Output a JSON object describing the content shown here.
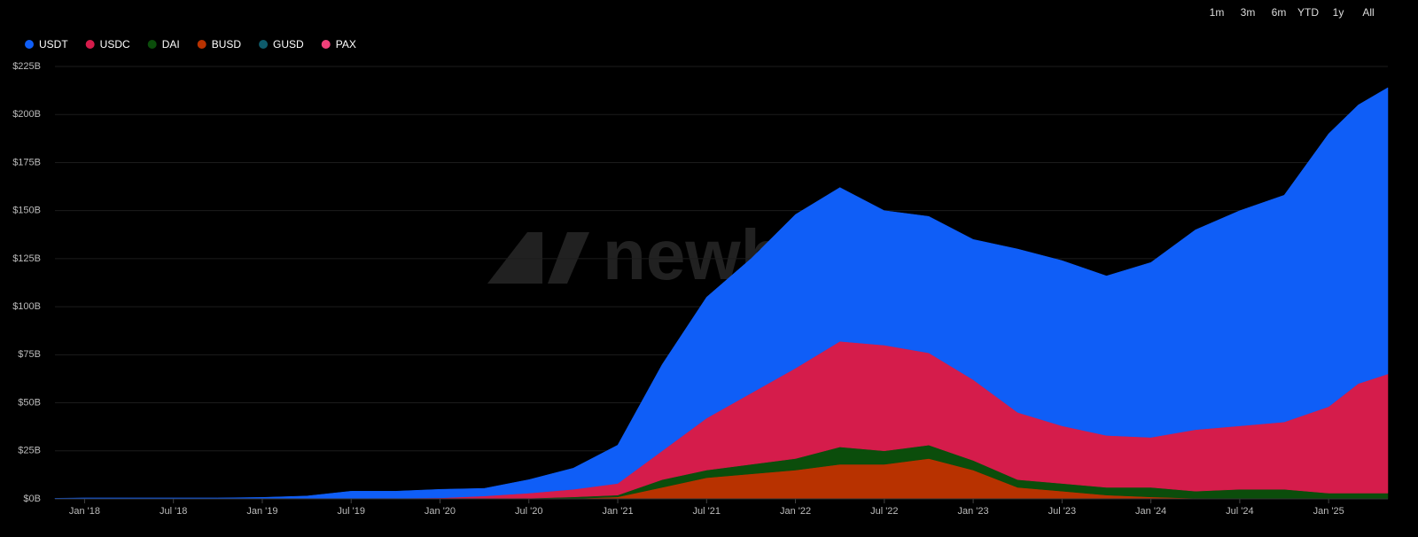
{
  "chart_data": {
    "type": "stacked_area",
    "watermark": "newhedge",
    "range_buttons": [
      "1m",
      "3m",
      "6m",
      "YTD",
      "1y",
      "All"
    ],
    "x": [
      "2017-11",
      "2018-01",
      "2018-04",
      "2018-07",
      "2018-10",
      "2019-01",
      "2019-04",
      "2019-07",
      "2019-10",
      "2020-01",
      "2020-04",
      "2020-07",
      "2020-10",
      "2021-01",
      "2021-04",
      "2021-07",
      "2021-10",
      "2022-01",
      "2022-04",
      "2022-07",
      "2022-10",
      "2023-01",
      "2023-04",
      "2023-07",
      "2023-10",
      "2024-01",
      "2024-04",
      "2024-07",
      "2024-10",
      "2025-01",
      "2025-03",
      "2025-05"
    ],
    "series": [
      {
        "name": "USDT",
        "color": "#0f5ef7",
        "values": [
          0.3,
          0.5,
          0.5,
          0.5,
          0.5,
          0.8,
          1.5,
          3.8,
          3.7,
          4.5,
          4,
          7,
          11,
          20,
          45,
          63,
          70,
          80,
          80,
          70,
          71,
          73,
          85,
          86,
          83,
          91,
          104,
          112,
          118,
          142,
          145,
          149
        ]
      },
      {
        "name": "USDC",
        "color": "#d51c4b",
        "values": [
          0,
          0,
          0,
          0,
          0,
          0,
          0,
          0.2,
          0.3,
          0.5,
          1.5,
          2.7,
          4,
          6,
          15,
          27,
          37,
          47,
          55,
          55,
          48,
          42,
          35,
          30,
          27,
          26,
          32,
          33,
          35,
          45,
          57,
          62
        ]
      },
      {
        "name": "DAI",
        "color": "#0b4d0b",
        "values": [
          0,
          0,
          0,
          0,
          0,
          0,
          0,
          0,
          0,
          0,
          0,
          0.3,
          0.8,
          1,
          4,
          4,
          5,
          6,
          9,
          7,
          7,
          5,
          4,
          4,
          4,
          5,
          3.7,
          5,
          5,
          3,
          3,
          3
        ]
      },
      {
        "name": "BUSD",
        "color": "#b83200",
        "values": [
          0,
          0,
          0,
          0,
          0,
          0,
          0,
          0,
          0,
          0,
          0,
          0,
          0.2,
          1,
          6,
          11,
          13,
          15,
          18,
          18,
          21,
          15,
          6,
          4,
          2,
          1,
          0.3,
          0,
          0,
          0,
          0,
          0
        ]
      },
      {
        "name": "GUSD",
        "color": "#0e5b6b",
        "values": [
          0,
          0,
          0,
          0,
          0,
          0,
          0,
          0,
          0,
          0,
          0,
          0,
          0,
          0,
          0,
          0,
          0,
          0,
          0,
          0,
          0,
          0,
          0,
          0,
          0,
          0,
          0,
          0,
          0,
          0,
          0,
          0
        ]
      },
      {
        "name": "PAX",
        "color": "#f0407a",
        "values": [
          0,
          0,
          0,
          0,
          0,
          0,
          0,
          0,
          0,
          0,
          0,
          0,
          0,
          0,
          0,
          0,
          0,
          0,
          0,
          0,
          0,
          0,
          0,
          0,
          0,
          0,
          0,
          0,
          0,
          0,
          0,
          0
        ]
      }
    ],
    "xlim": [
      "2017-11",
      "2025-05"
    ],
    "xticks": [
      {
        "value": "2018-01",
        "label": "Jan '18"
      },
      {
        "value": "2018-07",
        "label": "Jul '18"
      },
      {
        "value": "2019-01",
        "label": "Jan '19"
      },
      {
        "value": "2019-07",
        "label": "Jul '19"
      },
      {
        "value": "2020-01",
        "label": "Jan '20"
      },
      {
        "value": "2020-07",
        "label": "Jul '20"
      },
      {
        "value": "2021-01",
        "label": "Jan '21"
      },
      {
        "value": "2021-07",
        "label": "Jul '21"
      },
      {
        "value": "2022-01",
        "label": "Jan '22"
      },
      {
        "value": "2022-07",
        "label": "Jul '22"
      },
      {
        "value": "2023-01",
        "label": "Jan '23"
      },
      {
        "value": "2023-07",
        "label": "Jul '23"
      },
      {
        "value": "2024-01",
        "label": "Jan '24"
      },
      {
        "value": "2024-07",
        "label": "Jul '24"
      },
      {
        "value": "2025-01",
        "label": "Jan '25"
      }
    ],
    "ylim": [
      0,
      225
    ],
    "yticks": [
      {
        "value": 0,
        "label": "$0B"
      },
      {
        "value": 25,
        "label": "$25B"
      },
      {
        "value": 50,
        "label": "$50B"
      },
      {
        "value": 75,
        "label": "$75B"
      },
      {
        "value": 100,
        "label": "$100B"
      },
      {
        "value": 125,
        "label": "$125B"
      },
      {
        "value": 150,
        "label": "$150B"
      },
      {
        "value": 175,
        "label": "$175B"
      },
      {
        "value": 200,
        "label": "$200B"
      },
      {
        "value": 225,
        "label": "$225B"
      }
    ],
    "grid": true,
    "legend": "top-left"
  }
}
